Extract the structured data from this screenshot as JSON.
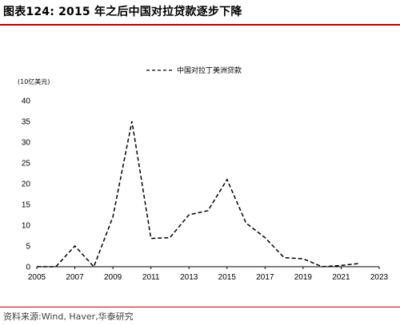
{
  "header": {
    "title": "图表124:  2015 年之后中国对拉贷款逐步下降"
  },
  "footer": {
    "source": "资料来源:Wind, Haver,华泰研究"
  },
  "chart_data": {
    "type": "line",
    "ylabel": "(10亿美元)",
    "ylim": [
      0,
      40
    ],
    "yticks": [
      "0",
      "5",
      "10",
      "15",
      "20",
      "25",
      "30",
      "35",
      "40"
    ],
    "xlim": [
      2005,
      2023
    ],
    "xticks": [
      "2005",
      "2007",
      "2009",
      "2011",
      "2013",
      "2015",
      "2017",
      "2019",
      "2021",
      "2023"
    ],
    "legend_position": "top-center",
    "grid": false,
    "series": [
      {
        "name": "中国对拉丁美洲贷款",
        "color": "#000000",
        "line_style": "dashed",
        "x": [
          2005,
          2006,
          2007,
          2008,
          2009,
          2010,
          2011,
          2012,
          2013,
          2014,
          2015,
          2016,
          2017,
          2018,
          2019,
          2020,
          2021,
          2022
        ],
        "y": [
          0,
          0,
          5,
          0,
          12,
          35,
          6.8,
          7,
          12.5,
          13.5,
          21,
          10.5,
          7,
          2.2,
          1.9,
          0,
          0.3,
          0.8
        ]
      }
    ]
  }
}
